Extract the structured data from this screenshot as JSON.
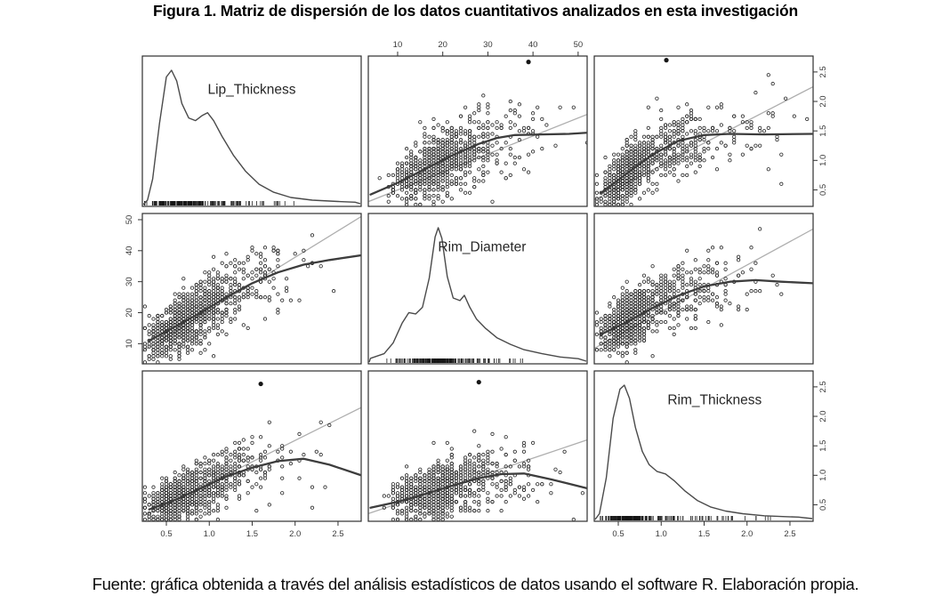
{
  "figure": {
    "title": "Figura 1. Matriz de dispersión de los datos cuantitativos analizados en esta investigación",
    "caption": "Fuente: gráfica obtenida a través del análisis estadísticos de datos usando el software R. Elaboración propia."
  },
  "chart_data": {
    "type": "scatter",
    "subtype": "scatter-plot-matrix-pairs-R",
    "title": "Figura 1. Matriz de dispersión de los datos cuantitativos analizados en esta investigación",
    "grid": "3x3, diagonal shows kernel density with rug, off-diagonal scatter with linear fit (light gray) and loess smooth (dark gray)",
    "axis_layout": {
      "top_axis_column": "Rim_Diameter",
      "left_axis_row": "Rim_Diameter",
      "right_axis_rows": [
        "Lip_Thickness",
        "Rim_Thickness"
      ],
      "bottom_axis_columns": [
        "Lip_Thickness",
        "Rim_Thickness"
      ]
    },
    "variables": [
      {
        "name": "Lip_Thickness",
        "range": [
          0.22,
          2.77
        ],
        "ticks": [
          0.5,
          1.0,
          1.5,
          2.0,
          2.5
        ],
        "tick_decimals": 1,
        "round_step": 0.05,
        "noise_sd": 0.3,
        "label_pos": [
          0.5,
          0.18
        ],
        "mixture": [
          {
            "w": 0.58,
            "m": 0.62,
            "s": 0.16
          },
          {
            "w": 0.3,
            "m": 1.02,
            "s": 0.2
          },
          {
            "w": 0.12,
            "m": 1.5,
            "s": 0.35
          }
        ],
        "density": [
          [
            0.28,
            0.02
          ],
          [
            0.34,
            0.18
          ],
          [
            0.42,
            0.6
          ],
          [
            0.5,
            0.95
          ],
          [
            0.56,
            1.0
          ],
          [
            0.62,
            0.92
          ],
          [
            0.68,
            0.75
          ],
          [
            0.76,
            0.64
          ],
          [
            0.84,
            0.62
          ],
          [
            0.92,
            0.66
          ],
          [
            0.98,
            0.68
          ],
          [
            1.05,
            0.62
          ],
          [
            1.15,
            0.5
          ],
          [
            1.28,
            0.36
          ],
          [
            1.42,
            0.24
          ],
          [
            1.58,
            0.14
          ],
          [
            1.75,
            0.08
          ],
          [
            1.95,
            0.04
          ],
          [
            2.2,
            0.02
          ],
          [
            2.5,
            0.01
          ],
          [
            2.7,
            0.005
          ]
        ]
      },
      {
        "name": "Rim_Diameter",
        "range": [
          3.5,
          52
        ],
        "ticks": [
          10,
          20,
          30,
          40,
          50
        ],
        "tick_decimals": 0,
        "round_step": 1,
        "noise_sd": 6.0,
        "label_pos": [
          0.52,
          0.18
        ],
        "mixture": [
          {
            "w": 0.2,
            "m": 13,
            "s": 2.2
          },
          {
            "w": 0.5,
            "m": 19,
            "s": 2.2
          },
          {
            "w": 0.18,
            "m": 25,
            "s": 3.0
          },
          {
            "w": 0.12,
            "m": 33,
            "s": 6.0
          }
        ],
        "density": [
          [
            4,
            0.015
          ],
          [
            7,
            0.05
          ],
          [
            9,
            0.13
          ],
          [
            11,
            0.28
          ],
          [
            12.5,
            0.36
          ],
          [
            14,
            0.35
          ],
          [
            15.5,
            0.4
          ],
          [
            17,
            0.62
          ],
          [
            18.3,
            0.93
          ],
          [
            19,
            1.0
          ],
          [
            19.8,
            0.92
          ],
          [
            21,
            0.63
          ],
          [
            22.3,
            0.47
          ],
          [
            23.8,
            0.45
          ],
          [
            24.8,
            0.49
          ],
          [
            26,
            0.4
          ],
          [
            27.5,
            0.31
          ],
          [
            29.5,
            0.24
          ],
          [
            32,
            0.17
          ],
          [
            35,
            0.12
          ],
          [
            38,
            0.08
          ],
          [
            42,
            0.05
          ],
          [
            46,
            0.025
          ],
          [
            50,
            0.012
          ]
        ]
      },
      {
        "name": "Rim_Thickness",
        "range": [
          0.22,
          2.77
        ],
        "ticks": [
          0.5,
          1.0,
          1.5,
          2.0,
          2.5
        ],
        "tick_decimals": 1,
        "round_step": 0.05,
        "noise_sd": 0.26,
        "label_pos": [
          0.55,
          0.15
        ],
        "mixture": [
          {
            "w": 0.66,
            "m": 0.6,
            "s": 0.13
          },
          {
            "w": 0.24,
            "m": 1.05,
            "s": 0.25
          },
          {
            "w": 0.1,
            "m": 1.6,
            "s": 0.4
          }
        ],
        "density": [
          [
            0.28,
            0.03
          ],
          [
            0.36,
            0.3
          ],
          [
            0.44,
            0.75
          ],
          [
            0.52,
            0.97
          ],
          [
            0.57,
            1.0
          ],
          [
            0.63,
            0.9
          ],
          [
            0.7,
            0.68
          ],
          [
            0.78,
            0.5
          ],
          [
            0.86,
            0.4
          ],
          [
            0.95,
            0.35
          ],
          [
            1.05,
            0.33
          ],
          [
            1.15,
            0.28
          ],
          [
            1.28,
            0.2
          ],
          [
            1.42,
            0.13
          ],
          [
            1.58,
            0.08
          ],
          [
            1.75,
            0.05
          ],
          [
            1.95,
            0.03
          ],
          [
            2.2,
            0.015
          ],
          [
            2.45,
            0.008
          ],
          [
            2.6,
            0.005
          ]
        ]
      }
    ],
    "panels": {
      "r0c1": {
        "xvar": 1,
        "yvar": 0,
        "n": 1000,
        "lm": [
          [
            3.5,
            0.3
          ],
          [
            52,
            1.78
          ]
        ],
        "loess": [
          [
            4,
            0.42
          ],
          [
            10,
            0.62
          ],
          [
            16,
            0.85
          ],
          [
            22,
            1.08
          ],
          [
            28,
            1.28
          ],
          [
            32,
            1.38
          ],
          [
            36,
            1.43
          ],
          [
            42,
            1.44
          ],
          [
            48,
            1.45
          ],
          [
            52,
            1.47
          ]
        ],
        "outliers": [
          [
            39,
            2.67
          ]
        ]
      },
      "r0c2": {
        "xvar": 2,
        "yvar": 0,
        "n": 1000,
        "lm": [
          [
            0.22,
            0.33
          ],
          [
            2.77,
            2.25
          ]
        ],
        "loess": [
          [
            0.3,
            0.45
          ],
          [
            0.6,
            0.78
          ],
          [
            0.9,
            1.1
          ],
          [
            1.2,
            1.33
          ],
          [
            1.5,
            1.43
          ],
          [
            1.8,
            1.45
          ],
          [
            2.2,
            1.44
          ],
          [
            2.77,
            1.45
          ]
        ],
        "outliers": [
          [
            1.06,
            2.7
          ]
        ]
      },
      "r1c0": {
        "xvar": 0,
        "yvar": 1,
        "n": 1000,
        "lm": [
          [
            0.22,
            7.5
          ],
          [
            2.77,
            51
          ]
        ],
        "loess": [
          [
            0.3,
            11
          ],
          [
            0.6,
            15.5
          ],
          [
            0.9,
            20
          ],
          [
            1.2,
            25
          ],
          [
            1.5,
            29.5
          ],
          [
            1.8,
            33
          ],
          [
            2.1,
            35.5
          ],
          [
            2.4,
            37
          ],
          [
            2.77,
            38.5
          ]
        ],
        "outliers": []
      },
      "r1c2": {
        "xvar": 2,
        "yvar": 1,
        "n": 1000,
        "lm": [
          [
            0.22,
            8.5
          ],
          [
            2.77,
            47
          ]
        ],
        "loess": [
          [
            0.3,
            13
          ],
          [
            0.6,
            17
          ],
          [
            0.9,
            21.5
          ],
          [
            1.2,
            25.5
          ],
          [
            1.5,
            28.5
          ],
          [
            1.8,
            30
          ],
          [
            2.1,
            30.5
          ],
          [
            2.4,
            30
          ],
          [
            2.77,
            29.5
          ]
        ],
        "outliers": []
      },
      "r2c0": {
        "xvar": 0,
        "yvar": 2,
        "n": 1000,
        "lm": [
          [
            0.22,
            0.3
          ],
          [
            2.77,
            2.15
          ]
        ],
        "loess": [
          [
            0.3,
            0.42
          ],
          [
            0.6,
            0.58
          ],
          [
            0.9,
            0.78
          ],
          [
            1.2,
            0.98
          ],
          [
            1.5,
            1.13
          ],
          [
            1.8,
            1.24
          ],
          [
            2.1,
            1.28
          ],
          [
            2.4,
            1.18
          ],
          [
            2.77,
            1.0
          ]
        ],
        "outliers": [
          [
            1.6,
            2.55
          ]
        ]
      },
      "r2c1": {
        "xvar": 1,
        "yvar": 2,
        "n": 1000,
        "lm": [
          [
            3.5,
            0.35
          ],
          [
            52,
            1.6
          ]
        ],
        "loess": [
          [
            4,
            0.45
          ],
          [
            10,
            0.55
          ],
          [
            16,
            0.68
          ],
          [
            22,
            0.82
          ],
          [
            28,
            0.95
          ],
          [
            33,
            1.02
          ],
          [
            38,
            1.03
          ],
          [
            44,
            0.93
          ],
          [
            52,
            0.78
          ]
        ],
        "outliers": [
          [
            28,
            2.58
          ]
        ]
      }
    },
    "rug_n": 230,
    "style": {
      "background": "#ffffff",
      "point_color": "#161616",
      "loess_color": "#3d3d3d",
      "lm_color": "#aeaeae",
      "density_color": "#4a4a4a",
      "border_color": "#2e2e2e",
      "tick_color": "#333333",
      "tick_label_color": "#3a3a3a",
      "var_label_color": "#262626"
    }
  }
}
